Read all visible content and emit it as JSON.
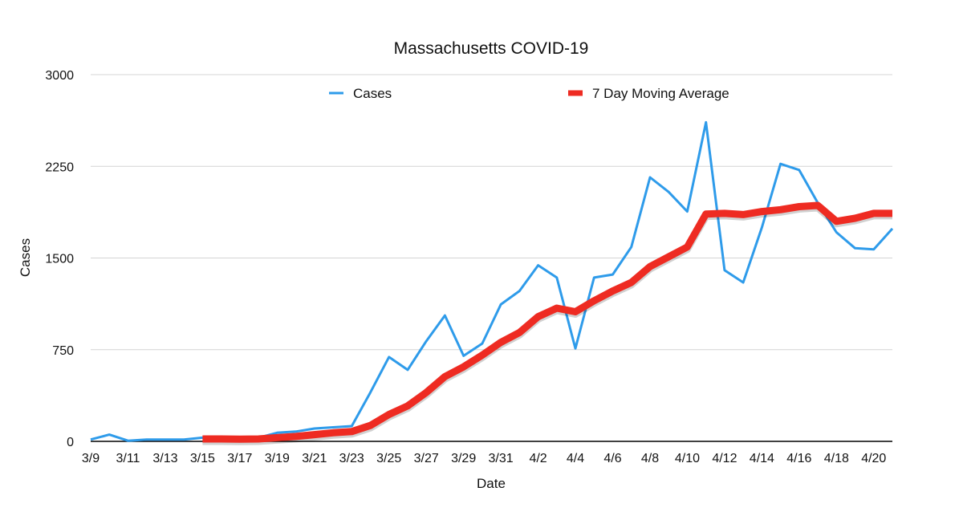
{
  "chart_data": {
    "type": "line",
    "title": "Massachusetts COVID-19",
    "xlabel": "Date",
    "ylabel": "Cases",
    "ylim": [
      0,
      3000
    ],
    "yticks": [
      0,
      750,
      1500,
      2250,
      3000
    ],
    "grid": true,
    "legend_position": "top",
    "x": [
      "3/9",
      "3/10",
      "3/11",
      "3/12",
      "3/13",
      "3/14",
      "3/15",
      "3/16",
      "3/17",
      "3/18",
      "3/19",
      "3/20",
      "3/21",
      "3/22",
      "3/23",
      "3/24",
      "3/25",
      "3/26",
      "3/27",
      "3/28",
      "3/29",
      "3/30",
      "3/31",
      "4/1",
      "4/2",
      "4/3",
      "4/4",
      "4/5",
      "4/6",
      "4/7",
      "4/8",
      "4/9",
      "4/10",
      "4/11",
      "4/12",
      "4/13",
      "4/14",
      "4/15",
      "4/16",
      "4/17",
      "4/18",
      "4/19",
      "4/20",
      "4/21"
    ],
    "xtick_labels": [
      "3/9",
      "3/11",
      "3/13",
      "3/15",
      "3/17",
      "3/19",
      "3/21",
      "3/23",
      "3/25",
      "3/27",
      "3/29",
      "3/31",
      "4/2",
      "4/4",
      "4/6",
      "4/8",
      "4/10",
      "4/12",
      "4/14",
      "4/16",
      "4/18",
      "4/20"
    ],
    "series": [
      {
        "name": "Cases",
        "color": "#2E9BEA",
        "values": [
          15,
          55,
          5,
          15,
          15,
          15,
          30,
          30,
          20,
          30,
          70,
          80,
          105,
          115,
          125,
          400,
          690,
          585,
          820,
          1030,
          700,
          800,
          1120,
          1230,
          1440,
          1340,
          760,
          1340,
          1365,
          1590,
          2160,
          2040,
          1880,
          2610,
          1400,
          1300,
          1750,
          2270,
          2220,
          1950,
          1710,
          1580,
          1570,
          1740
        ]
      },
      {
        "name": "7 Day Moving Average",
        "color": "#EE2B22",
        "values": [
          null,
          null,
          null,
          null,
          null,
          null,
          20,
          20,
          18,
          20,
          30,
          40,
          55,
          70,
          80,
          130,
          220,
          290,
          400,
          530,
          610,
          705,
          810,
          890,
          1020,
          1090,
          1060,
          1150,
          1230,
          1300,
          1430,
          1510,
          1590,
          1860,
          1865,
          1855,
          1880,
          1895,
          1920,
          1930,
          1800,
          1825,
          1865,
          1865
        ]
      }
    ]
  }
}
